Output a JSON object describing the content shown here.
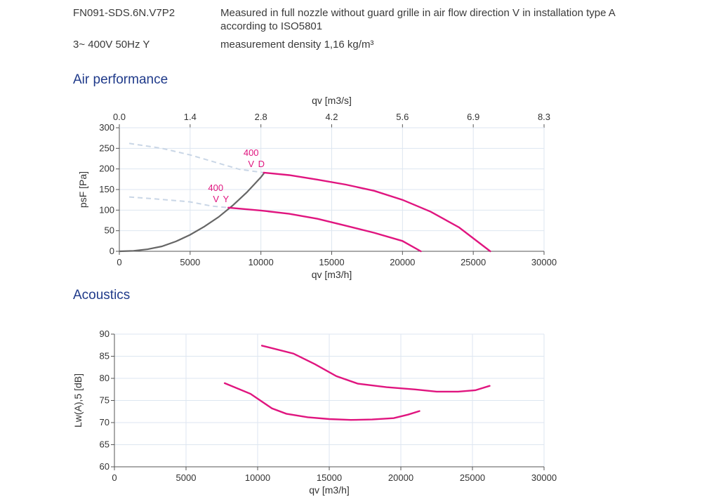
{
  "header": {
    "model": "FN091-SDS.6N.V7P2",
    "description": "Measured in full nozzle without guard grille in air flow direction V in installation type A according to ISO5801",
    "supply": "3~ 400V 50Hz Y",
    "density": "measurement density 1,16 kg/m³"
  },
  "sections": {
    "air_performance": "Air performance",
    "acoustics": "Acoustics"
  },
  "colors": {
    "curve": "#e0157f",
    "system": "#666666",
    "dashed": "#c9d6e6",
    "grid": "#dde6f0",
    "title": "#1f3a8a",
    "label": "#e0157f"
  },
  "chart_data": [
    {
      "type": "line",
      "title": "Air performance",
      "xlabel": "qv [m3/h]",
      "x2label": "qv [m3/s]",
      "ylabel": "psF [Pa]",
      "xlim": [
        0,
        30000
      ],
      "ylim": [
        0,
        300
      ],
      "xticks": [
        "0",
        "5000",
        "10000",
        "15000",
        "20000",
        "25000",
        "30000"
      ],
      "x2ticks": [
        "0.0",
        "1.4",
        "2.8",
        "4.2",
        "5.6",
        "6.9",
        "8.3"
      ],
      "yticks": [
        "0",
        "50",
        "100",
        "150",
        "200",
        "250",
        "300"
      ],
      "grid": true,
      "series": [
        {
          "name": "400 V D",
          "label_lines": [
            "400",
            "V D"
          ],
          "points": [
            [
              10200,
              191
            ],
            [
              12000,
              185
            ],
            [
              14000,
              174
            ],
            [
              16000,
              162
            ],
            [
              18000,
              147
            ],
            [
              20000,
              125
            ],
            [
              22000,
              96
            ],
            [
              24000,
              58
            ],
            [
              26200,
              0
            ]
          ]
        },
        {
          "name": "400 V Y",
          "label_lines": [
            "400",
            "V Y"
          ],
          "points": [
            [
              7700,
              106
            ],
            [
              10000,
              99
            ],
            [
              12000,
              91
            ],
            [
              14000,
              79
            ],
            [
              16000,
              62
            ],
            [
              18000,
              45
            ],
            [
              20000,
              25
            ],
            [
              21300,
              0
            ]
          ]
        }
      ],
      "system_curve": [
        [
          0,
          0
        ],
        [
          1000,
          1
        ],
        [
          2000,
          5
        ],
        [
          3000,
          12
        ],
        [
          4000,
          24
        ],
        [
          5000,
          40
        ],
        [
          6000,
          60
        ],
        [
          7000,
          83
        ],
        [
          8000,
          111
        ],
        [
          9000,
          143
        ],
        [
          10000,
          180
        ],
        [
          10250,
          191
        ]
      ],
      "dashed_extensions": [
        {
          "points": [
            [
              700,
              262
            ],
            [
              3000,
              250
            ],
            [
              5000,
              234
            ],
            [
              7000,
              214
            ],
            [
              8500,
              199
            ],
            [
              10200,
              191
            ]
          ]
        },
        {
          "points": [
            [
              700,
              132
            ],
            [
              3000,
              126
            ],
            [
              5000,
              120
            ],
            [
              6500,
              110
            ],
            [
              7700,
              106
            ]
          ]
        }
      ]
    },
    {
      "type": "line",
      "title": "Acoustics",
      "xlabel": "qv [m3/h]",
      "ylabel": "Lw(A),5 [dB]",
      "xlim": [
        0,
        30000
      ],
      "ylim": [
        60,
        90
      ],
      "xticks": [
        "0",
        "5000",
        "10000",
        "15000",
        "20000",
        "25000",
        "30000"
      ],
      "yticks": [
        "60",
        "65",
        "70",
        "75",
        "80",
        "85",
        "90"
      ],
      "grid": true,
      "series": [
        {
          "points": [
            [
              10300,
              87.4
            ],
            [
              12500,
              85.6
            ],
            [
              14000,
              83.2
            ],
            [
              15500,
              80.5
            ],
            [
              17000,
              78.8
            ],
            [
              19000,
              78.0
            ],
            [
              21000,
              77.5
            ],
            [
              22500,
              77.0
            ],
            [
              24000,
              77.0
            ],
            [
              25200,
              77.3
            ],
            [
              26200,
              78.3
            ]
          ]
        },
        {
          "points": [
            [
              7700,
              78.9
            ],
            [
              9500,
              76.5
            ],
            [
              11000,
              73.2
            ],
            [
              12000,
              72.0
            ],
            [
              13500,
              71.2
            ],
            [
              15000,
              70.8
            ],
            [
              16500,
              70.6
            ],
            [
              18000,
              70.7
            ],
            [
              19500,
              71.0
            ],
            [
              20500,
              71.8
            ],
            [
              21300,
              72.6
            ]
          ]
        }
      ]
    }
  ]
}
